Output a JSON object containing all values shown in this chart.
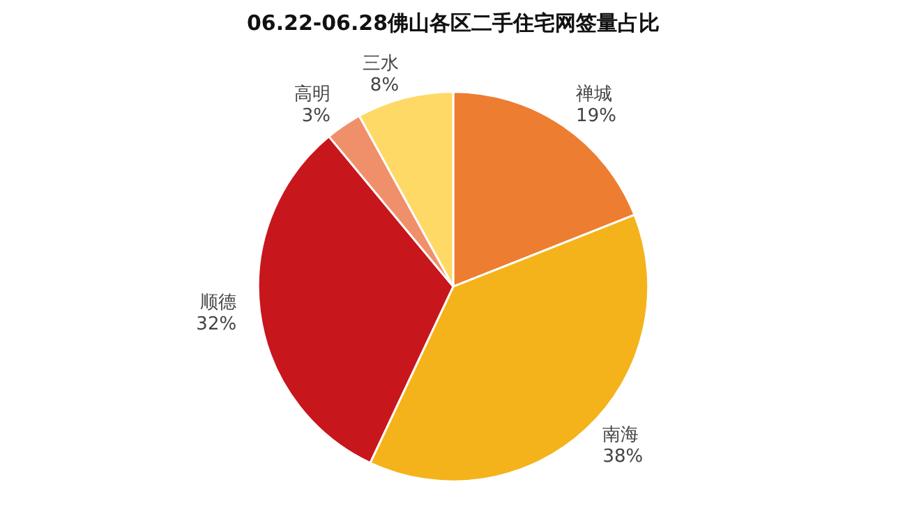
{
  "chart_data": {
    "type": "pie",
    "title": "06.22-06.28佛山各区二手住宅网签量占比",
    "categories": [
      "禅城",
      "南海",
      "顺德",
      "高明",
      "三水"
    ],
    "values": [
      19,
      38,
      32,
      3,
      8
    ],
    "value_labels": [
      "19%",
      "38%",
      "32%",
      "3%",
      "8%"
    ],
    "colors": [
      "#ed7d31",
      "#f4b31a",
      "#c8161d",
      "#f0906a",
      "#ffd966"
    ]
  }
}
